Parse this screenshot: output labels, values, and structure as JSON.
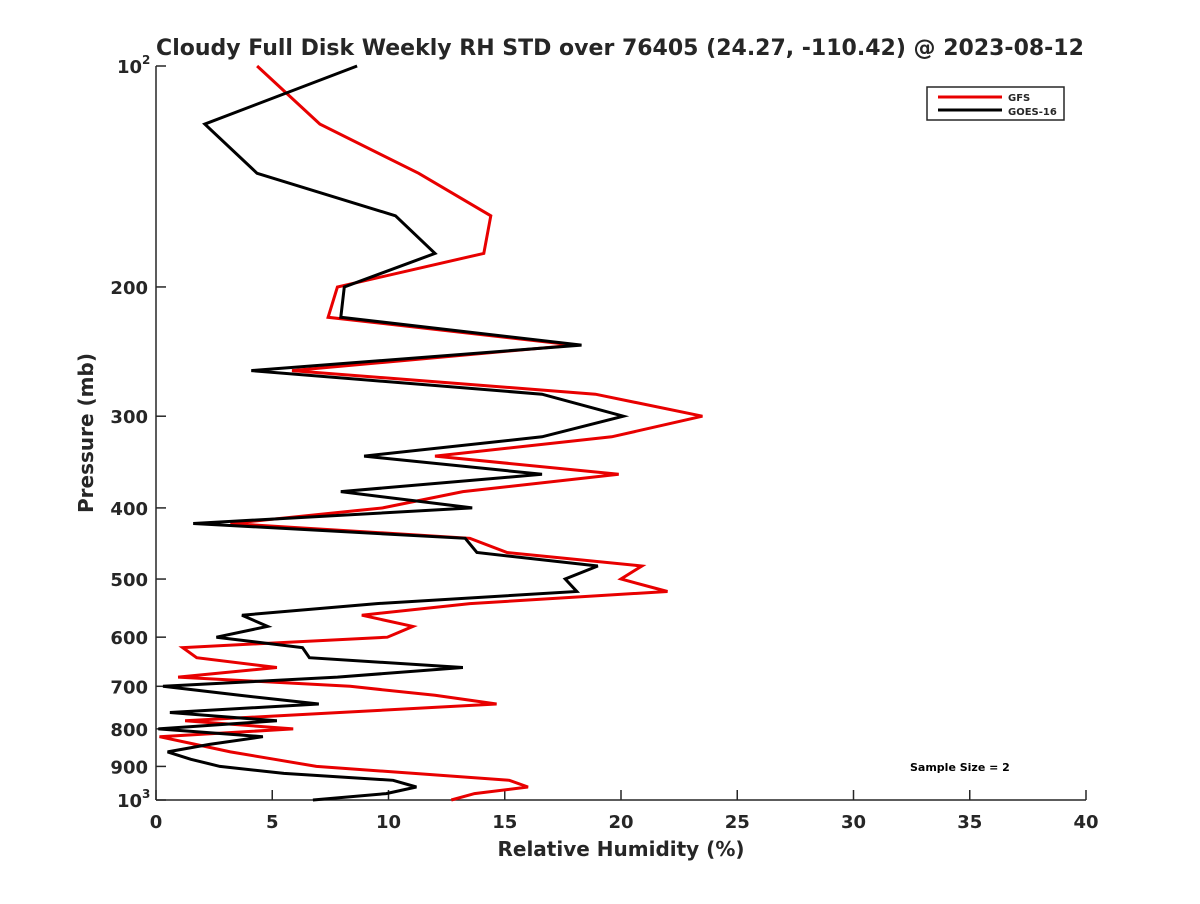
{
  "chart_data": {
    "type": "line",
    "title": "Cloudy Full Disk Weekly RH STD over 76405 (24.27, -110.42) @ 2023-08-12",
    "xlabel": "Relative Humidity (%)",
    "ylabel": "Pressure (mb)",
    "xlim": [
      0,
      40
    ],
    "ylim": [
      100,
      1000
    ],
    "yscale": "log",
    "y_reversed": true,
    "grid": false,
    "x_ticks": [
      "0",
      "5",
      "10",
      "15",
      "20",
      "25",
      "30",
      "35",
      "40"
    ],
    "x_tick_values": [
      0,
      5,
      10,
      15,
      20,
      25,
      30,
      35,
      40
    ],
    "y_ticks": [
      {
        "value": 100,
        "label": "10",
        "sup": "2"
      },
      {
        "value": 200,
        "label": "200"
      },
      {
        "value": 300,
        "label": "300"
      },
      {
        "value": 400,
        "label": "400"
      },
      {
        "value": 500,
        "label": "500"
      },
      {
        "value": 600,
        "label": "600"
      },
      {
        "value": 700,
        "label": "700"
      },
      {
        "value": 800,
        "label": "800"
      },
      {
        "value": 900,
        "label": "900"
      },
      {
        "value": 1000,
        "label": "10",
        "sup": "3"
      }
    ],
    "pressure": [
      100,
      120,
      140,
      160,
      180,
      200,
      220,
      240,
      260,
      280,
      300,
      320,
      340,
      360,
      380,
      400,
      420,
      440,
      460,
      480,
      500,
      520,
      540,
      560,
      580,
      600,
      620,
      640,
      660,
      680,
      700,
      720,
      740,
      760,
      780,
      800,
      820,
      840,
      860,
      880,
      900,
      920,
      940,
      960,
      980,
      1000
    ],
    "series": [
      {
        "name": "GFS",
        "color": "#e80000",
        "values": [
          4.35,
          7.05,
          11.3,
          14.4,
          14.1,
          7.8,
          7.4,
          18.0,
          5.85,
          18.9,
          23.5,
          19.6,
          12.0,
          19.9,
          13.2,
          9.75,
          3.2,
          13.5,
          15.1,
          20.9,
          20.0,
          22.0,
          13.5,
          8.85,
          11.05,
          9.95,
          1.15,
          1.75,
          5.2,
          0.95,
          8.35,
          12.0,
          14.65,
          7.9,
          1.25,
          5.9,
          0.15,
          1.7,
          3.2,
          5.1,
          6.9,
          11.1,
          15.2,
          16.0,
          13.7,
          12.7
        ]
      },
      {
        "name": "GOES-16",
        "color": "#000000",
        "values": [
          8.65,
          2.1,
          4.35,
          10.3,
          12.0,
          8.1,
          7.95,
          18.3,
          4.1,
          16.6,
          20.1,
          16.6,
          8.95,
          16.6,
          7.95,
          13.6,
          1.6,
          13.3,
          13.8,
          19.0,
          17.6,
          18.1,
          9.5,
          3.7,
          4.8,
          2.6,
          6.3,
          6.6,
          13.2,
          7.8,
          0.3,
          3.6,
          7.0,
          0.6,
          5.2,
          0.1,
          4.6,
          2.3,
          0.5,
          1.5,
          2.75,
          5.5,
          10.2,
          11.2,
          9.9,
          6.75
        ]
      }
    ],
    "legend_position": "top-right",
    "annotation": "Sample Size = 2"
  }
}
